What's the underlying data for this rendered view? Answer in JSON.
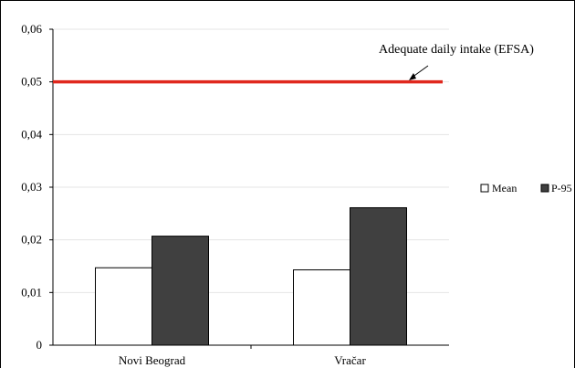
{
  "chart_data": {
    "type": "bar",
    "categories": [
      "Novi Beograd",
      "Vračar"
    ],
    "series": [
      {
        "name": "Mean",
        "values": [
          0.0147,
          0.0143
        ],
        "color": "#ffffff"
      },
      {
        "name": "P-95",
        "values": [
          0.0207,
          0.0261
        ],
        "color": "#404040"
      }
    ],
    "ylim": [
      0,
      0.06
    ],
    "yticks": [
      {
        "value": 0,
        "label": "0"
      },
      {
        "value": 0.01,
        "label": "0,01"
      },
      {
        "value": 0.02,
        "label": "0,02"
      },
      {
        "value": 0.03,
        "label": "0,03"
      },
      {
        "value": 0.04,
        "label": "0,04"
      },
      {
        "value": 0.05,
        "label": "0,05"
      },
      {
        "value": 0.06,
        "label": "0,06"
      }
    ],
    "reference_line": {
      "value": 0.05,
      "color": "#e0281e"
    },
    "annotation": {
      "text": "Adequate daily intake (EFSA)"
    },
    "legend": {
      "position": "right"
    },
    "title": "",
    "xlabel": "",
    "ylabel": ""
  }
}
